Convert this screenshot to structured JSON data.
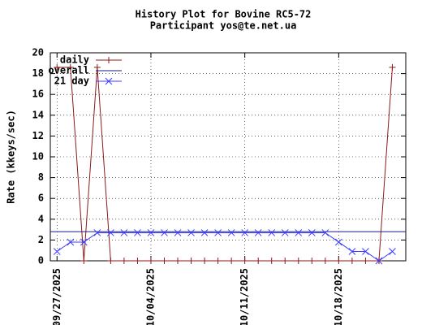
{
  "chart_data": {
    "type": "line",
    "title": "History Plot for Bovine RC5-72",
    "subtitle": "Participant yos@te.net.ua",
    "y_label": "Rate (kkeys/sec)",
    "x": [
      "2025-09-27",
      "2025-09-28",
      "2025-09-29",
      "2025-09-30",
      "2025-10-01",
      "2025-10-02",
      "2025-10-03",
      "2025-10-04",
      "2025-10-05",
      "2025-10-06",
      "2025-10-07",
      "2025-10-08",
      "2025-10-09",
      "2025-10-10",
      "2025-10-11",
      "2025-10-12",
      "2025-10-13",
      "2025-10-14",
      "2025-10-15",
      "2025-10-16",
      "2025-10-17",
      "2025-10-18",
      "2025-10-19",
      "2025-10-20",
      "2025-10-21",
      "2025-10-22"
    ],
    "series": [
      {
        "name": "daily",
        "color": "#8b1a1a",
        "marker": "+",
        "values": [
          18.6,
          18.6,
          0,
          18.6,
          0,
          0,
          0,
          0,
          0,
          0,
          0,
          0,
          0,
          0,
          0,
          0,
          0,
          0,
          0,
          0,
          0,
          0,
          0,
          0,
          0,
          18.6
        ]
      },
      {
        "name": "overall",
        "color": "#1a1a8b",
        "style": "hline",
        "value": 2.8
      },
      {
        "name": "21 day",
        "color": "#3c3cff",
        "marker": "x",
        "values": [
          0.9,
          1.8,
          1.8,
          2.7,
          2.7,
          2.7,
          2.7,
          2.7,
          2.7,
          2.7,
          2.7,
          2.7,
          2.7,
          2.7,
          2.7,
          2.7,
          2.7,
          2.7,
          2.7,
          2.7,
          2.7,
          1.8,
          0.9,
          0.9,
          0,
          0.9
        ]
      }
    ],
    "xlim": [
      "2025-09-26T12:00:00Z",
      "2025-10-23T00:00:00Z"
    ],
    "xticks": [
      {
        "value": "2025-09-27",
        "label": "09/27/2025"
      },
      {
        "value": "2025-10-04",
        "label": "10/04/2025"
      },
      {
        "value": "2025-10-11",
        "label": "10/11/2025"
      },
      {
        "value": "2025-10-18",
        "label": "10/18/2025"
      }
    ],
    "ylim": [
      0,
      20
    ],
    "yticks": [
      0,
      2,
      4,
      6,
      8,
      10,
      12,
      14,
      16,
      18,
      20
    ],
    "grid": true,
    "legend": "top-left"
  }
}
